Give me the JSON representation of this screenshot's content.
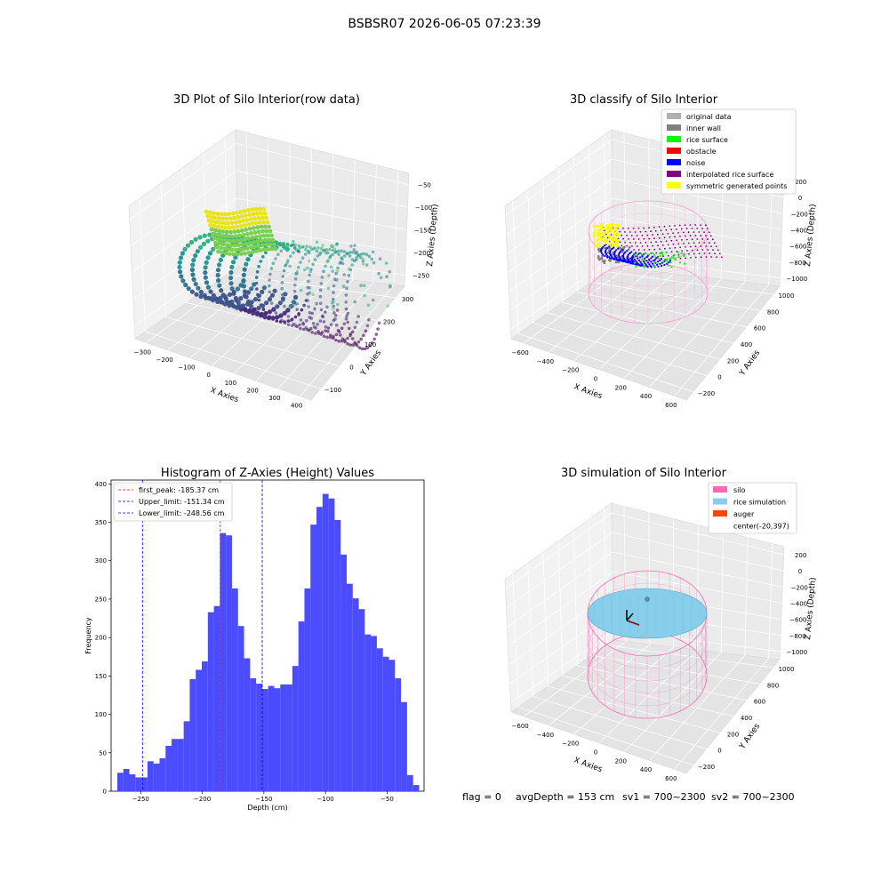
{
  "figure_title": "BSBSR07 2026-06-05 07:23:39",
  "footer": {
    "flag": "flag = 0",
    "avg_depth": "avgDepth = 153 cm",
    "sv1": "sv1 = 700~2300",
    "sv2": "sv2 = 700~2300"
  },
  "colors": {
    "hist_bar": "#4b4bff",
    "first_peak_line": "#ff0000",
    "limit_line": "#0000cc",
    "silo": "#ff69b4",
    "rice_simulation": "#87ceeb",
    "auger": "#ff4500"
  },
  "chart_data": [
    {
      "type": "scatter",
      "projection": "3d",
      "title": "3D Plot of Silo Interior(row data)",
      "xlabel": "X Axies",
      "ylabel": "Y Axies",
      "zlabel": "Z Axies (Depth)",
      "x_ticks": [
        "−300",
        "−200",
        "−100",
        "0",
        "100",
        "200",
        "300",
        "400"
      ],
      "y_ticks": [
        "−100",
        "0",
        "100",
        "200",
        "300"
      ],
      "z_ticks": [
        "−50",
        "−100",
        "−150",
        "−200",
        "−250"
      ],
      "colormap": "viridis"
    },
    {
      "type": "scatter",
      "projection": "3d",
      "title": "3D classify of Silo Interior",
      "xlabel": "X Axies",
      "ylabel": "Y Axies",
      "zlabel": "Z Axies (Depth)",
      "x_ticks": [
        "−600",
        "−400",
        "−200",
        "0",
        "200",
        "400",
        "600"
      ],
      "y_ticks": [
        "−200",
        "0",
        "200",
        "400",
        "600",
        "800",
        "1000"
      ],
      "z_ticks": [
        "200",
        "0",
        "−200",
        "−400",
        "−600",
        "−800",
        "−1000"
      ],
      "legend_position": "top-right",
      "legend": [
        {
          "label": "original data",
          "color": "#b0b0b0"
        },
        {
          "label": "inner wall",
          "color": "#808080"
        },
        {
          "label": "rice surface",
          "color": "#00ff00"
        },
        {
          "label": "obstacle",
          "color": "#ff0000"
        },
        {
          "label": "noise",
          "color": "#0000ff"
        },
        {
          "label": "interpolated rice surface",
          "color": "#800080"
        },
        {
          "label": "symmetric generated points",
          "color": "#ffff00"
        }
      ]
    },
    {
      "type": "bar",
      "title": "Histogram of Z-Axies (Height) Values",
      "xlabel": "Depth (cm)",
      "ylabel": "Frequency",
      "xlim": [
        -274,
        -20
      ],
      "ylim": [
        0,
        405
      ],
      "x_ticks": [
        -250,
        -200,
        -150,
        -100,
        -50
      ],
      "x_tick_labels": [
        "−250",
        "−200",
        "−150",
        "−100",
        "−50"
      ],
      "y_ticks": [
        0,
        50,
        100,
        150,
        200,
        250,
        300,
        350,
        400
      ],
      "bin_start": -269,
      "bin_width": 4.9,
      "values": [
        24,
        29,
        22,
        18,
        18,
        39,
        36,
        43,
        59,
        68,
        68,
        91,
        146,
        158,
        169,
        233,
        241,
        336,
        333,
        264,
        215,
        173,
        147,
        140,
        133,
        137,
        134,
        139,
        139,
        163,
        221,
        264,
        347,
        370,
        387,
        381,
        353,
        308,
        270,
        251,
        237,
        204,
        202,
        186,
        175,
        171,
        147,
        116,
        21,
        8
      ],
      "vlines": [
        {
          "label": "first_peak: -185.37 cm",
          "x": -185.37,
          "color": "#ff0000"
        },
        {
          "label": "Upper_limit: -151.34 cm",
          "x": -151.34,
          "color": "#0000cc"
        },
        {
          "label": "Lower_limit: -248.56 cm",
          "x": -248.56,
          "color": "#0000cc"
        }
      ],
      "legend_position": "top-left"
    },
    {
      "type": "scatter",
      "projection": "3d",
      "title": "3D simulation of Silo Interior",
      "xlabel": "X Axies",
      "ylabel": "Y Axies",
      "zlabel": "Z Axies (Depth)",
      "x_ticks": [
        "−600",
        "−400",
        "−200",
        "0",
        "200",
        "400",
        "600"
      ],
      "y_ticks": [
        "−200",
        "0",
        "200",
        "400",
        "600",
        "800",
        "1000"
      ],
      "z_ticks": [
        "200",
        "0",
        "−200",
        "−400",
        "−600",
        "−800",
        "−1000"
      ],
      "legend_position": "top-right",
      "legend": [
        {
          "label": "silo",
          "color": "#ff69b4"
        },
        {
          "label": "rice simulation",
          "color": "#87ceeb"
        },
        {
          "label": "auger",
          "color": "#ff4500"
        },
        {
          "label": "center(-20,397)",
          "color": ""
        }
      ]
    }
  ]
}
